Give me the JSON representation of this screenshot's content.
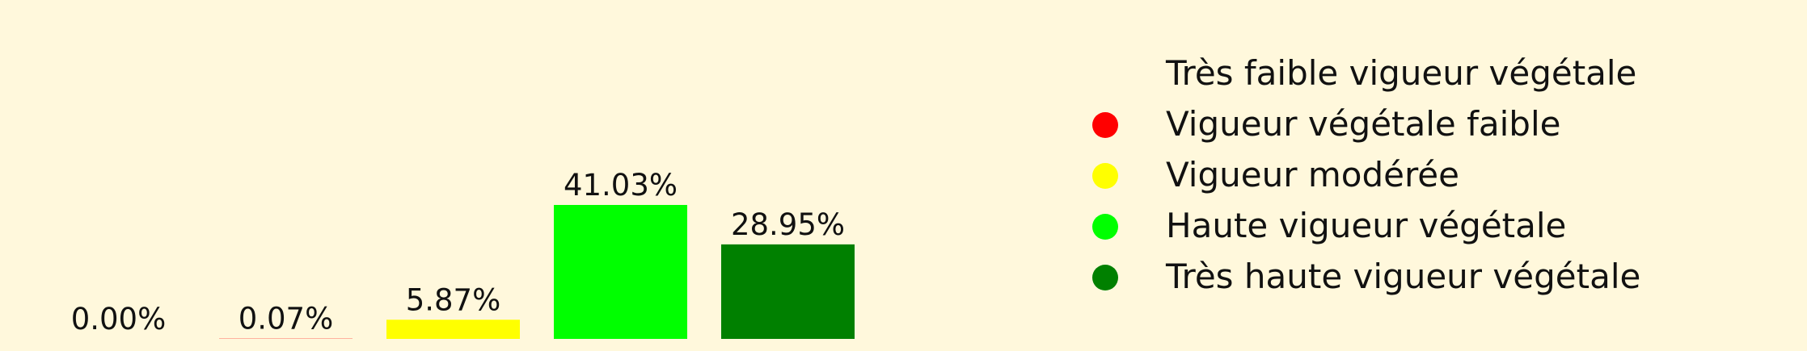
{
  "chart_data": {
    "type": "bar",
    "categories": [
      "Très faible vigueur végétale",
      "Vigueur végétale faible",
      "Vigueur modérée",
      "Haute vigueur végétale",
      "Très haute vigueur végétale"
    ],
    "values": [
      0.0,
      0.07,
      5.87,
      41.03,
      28.95
    ],
    "data_labels": [
      "0.00%",
      "0.07%",
      "5.87%",
      "41.03%",
      "28.95%"
    ],
    "colors": [
      "#8b0000",
      "#ff0000",
      "#ffff00",
      "#00ff00",
      "#008000"
    ],
    "title": "",
    "xlabel": "",
    "ylabel": "",
    "ylim": [
      0,
      41.03
    ],
    "grid": false,
    "legend_position": "right",
    "legend": [
      {
        "label": "Très faible vigueur végétale",
        "color": "#8b0000",
        "marker": "none"
      },
      {
        "label": "Vigueur végétale faible",
        "color": "#ff0000",
        "marker": "circle"
      },
      {
        "label": "Vigueur modérée",
        "color": "#ffff00",
        "marker": "circle"
      },
      {
        "label": "Haute vigueur végétale",
        "color": "#00ff00",
        "marker": "circle"
      },
      {
        "label": "Très haute vigueur végétale",
        "color": "#008000",
        "marker": "circle"
      }
    ]
  }
}
